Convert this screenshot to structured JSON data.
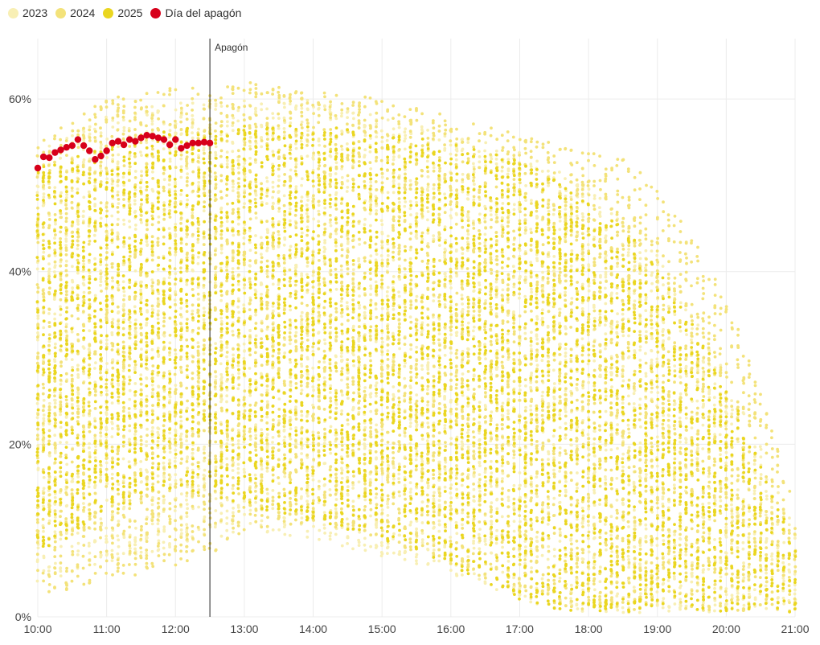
{
  "chart_data": {
    "type": "scatter",
    "title": "",
    "xlabel": "",
    "ylabel": "",
    "x_ticks": [
      "10:00",
      "11:00",
      "12:00",
      "13:00",
      "14:00",
      "15:00",
      "16:00",
      "17:00",
      "18:00",
      "19:00",
      "20:00",
      "21:00"
    ],
    "x_range_hours": [
      10,
      21
    ],
    "y_ticks": [
      "0%",
      "20%",
      "40%",
      "60%"
    ],
    "ylim": [
      0,
      67
    ],
    "grid": true,
    "legend_position": "top-left",
    "legend": [
      {
        "name": "2023",
        "color": "#f8efb4"
      },
      {
        "name": "2024",
        "color": "#f3e27a"
      },
      {
        "name": "2025",
        "color": "#ead620"
      },
      {
        "name": "Día del apagón",
        "color": "#d7001a"
      }
    ],
    "annotation": {
      "label": "Apagón",
      "x_hour": 12.5
    },
    "series": [
      {
        "name": "Día del apagón",
        "color": "#d7001a",
        "x_hours": [
          10.0,
          10.083,
          10.167,
          10.25,
          10.333,
          10.417,
          10.5,
          10.583,
          10.667,
          10.75,
          10.833,
          10.917,
          11.0,
          11.083,
          11.167,
          11.25,
          11.333,
          11.417,
          11.5,
          11.583,
          11.667,
          11.75,
          11.833,
          11.917,
          12.0,
          12.083,
          12.167,
          12.25,
          12.333,
          12.417,
          12.5
        ],
        "values": [
          52.0,
          53.3,
          53.2,
          53.8,
          54.1,
          54.4,
          54.6,
          55.3,
          54.6,
          54.0,
          53.0,
          53.4,
          54.0,
          54.9,
          55.1,
          54.7,
          55.3,
          55.1,
          55.5,
          55.8,
          55.7,
          55.5,
          55.3,
          54.7,
          55.3,
          54.3,
          54.6,
          54.9,
          54.9,
          55.0,
          54.9
        ]
      },
      {
        "name": "2025",
        "color": "#ead620",
        "envelope": {
          "x_hours": [
            10,
            11,
            12,
            12.5,
            13,
            14,
            15,
            16,
            17,
            17.5,
            18,
            18.5,
            19,
            19.5,
            20,
            20.5,
            21
          ],
          "upper": [
            52,
            55,
            57,
            56,
            57,
            57,
            56,
            55,
            53,
            51,
            48,
            45,
            41,
            34,
            27,
            18,
            8
          ],
          "lower": [
            7,
            12,
            15,
            14,
            13,
            11,
            9,
            6,
            2,
            1,
            0.5,
            0.5,
            0.5,
            0.5,
            0.5,
            0.5,
            0.5
          ]
        }
      },
      {
        "name": "2024",
        "color": "#f3e27a",
        "envelope": {
          "x_hours": [
            10,
            11,
            12,
            12.5,
            13,
            14,
            15,
            16,
            17,
            17.5,
            18,
            18.5,
            19,
            19.5,
            20,
            20.5,
            21
          ],
          "upper": [
            55,
            60,
            62,
            61,
            62,
            61,
            60,
            58,
            56,
            55,
            54,
            53,
            50,
            44,
            37,
            26,
            13
          ],
          "lower": [
            2,
            4,
            6,
            7,
            10,
            11,
            9,
            6,
            3,
            1.5,
            0.8,
            0.5,
            0.5,
            0.5,
            0.5,
            0.5,
            0.5
          ]
        }
      },
      {
        "name": "2023",
        "color": "#f8efb4",
        "envelope": {
          "x_hours": [
            10,
            11,
            12,
            12.5,
            13,
            14,
            15,
            16,
            17,
            17.5,
            18,
            18.5,
            19,
            19.5,
            20,
            20.5,
            21
          ],
          "upper": [
            54,
            58,
            60,
            60,
            60,
            60,
            58,
            56,
            54,
            52,
            50,
            46,
            42,
            35,
            28,
            20,
            10
          ],
          "lower": [
            4,
            6,
            8,
            9,
            10,
            9,
            7,
            5,
            2,
            1,
            0.5,
            0.5,
            0.5,
            0.5,
            0.5,
            0.5,
            0.5
          ]
        }
      }
    ]
  }
}
